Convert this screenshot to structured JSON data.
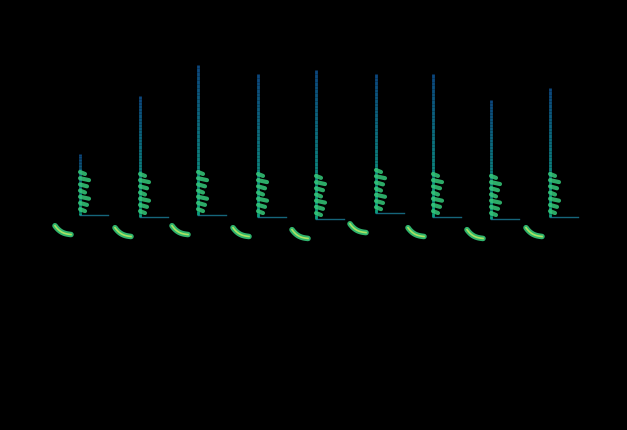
{
  "chart_data": {
    "type": "spectrogram",
    "tick_labels": false,
    "color": "#35c97a",
    "xlim": [
      0,
      6.27
    ],
    "ylim": [
      0,
      22
    ],
    "syllables": [
      {
        "time": 0.8,
        "top": 14.1,
        "note_start": 0.55,
        "note_freq": 10.1
      },
      {
        "time": 1.4,
        "top": 17.1,
        "note_start": 1.15,
        "note_freq": 10.0
      },
      {
        "time": 1.98,
        "top": 18.7,
        "note_start": 1.72,
        "note_freq": 10.1
      },
      {
        "time": 2.58,
        "top": 18.2,
        "note_start": 2.33,
        "note_freq": 10.0
      },
      {
        "time": 3.16,
        "top": 18.4,
        "note_start": 2.92,
        "note_freq": 9.9
      },
      {
        "time": 3.76,
        "top": 18.2,
        "note_start": 3.5,
        "note_freq": 10.2
      },
      {
        "time": 4.33,
        "top": 18.2,
        "note_start": 4.08,
        "note_freq": 10.0
      },
      {
        "time": 4.91,
        "top": 16.9,
        "note_start": 4.67,
        "note_freq": 9.9
      },
      {
        "time": 5.5,
        "top": 17.5,
        "note_start": 5.26,
        "note_freq": 10.0
      }
    ]
  }
}
